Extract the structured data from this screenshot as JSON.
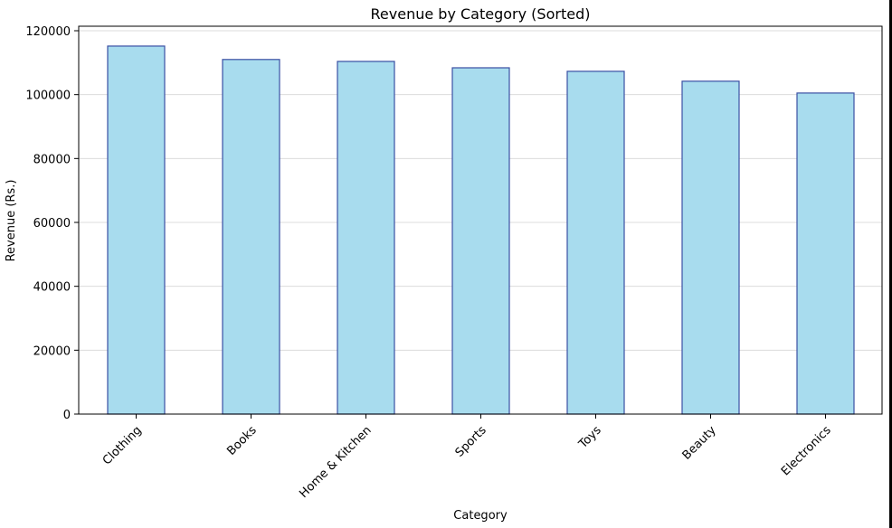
{
  "chart_data": {
    "type": "bar",
    "title": "Revenue by Category (Sorted)",
    "xlabel": "Category",
    "ylabel": "Revenue (Rs.)",
    "categories": [
      "Clothing",
      "Books",
      "Home & Kitchen",
      "Sports",
      "Toys",
      "Beauty",
      "Electronics"
    ],
    "values": [
      115200,
      111000,
      110400,
      108400,
      107300,
      104200,
      100500
    ],
    "ylim": [
      0,
      120000
    ],
    "yticks": [
      "0",
      "20000",
      "40000",
      "60000",
      "80000",
      "100000",
      "120000"
    ],
    "grid": "y-axis, light gray",
    "legend": "none",
    "colors": {
      "bar_fill": "#a8dcee",
      "bar_edge": "#3a4fa3",
      "grid": "#dcdcdc",
      "axis": "#000000"
    }
  }
}
